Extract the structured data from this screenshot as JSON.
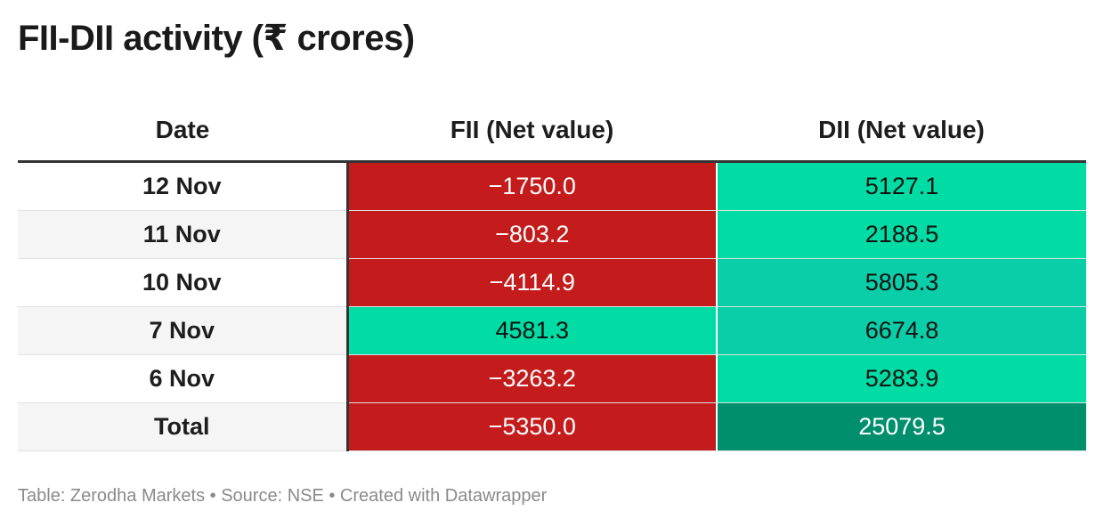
{
  "title": "FII-DII activity (₹ crores)",
  "table": {
    "headers": {
      "date": "Date",
      "fii": "FII (Net value)",
      "dii": "DII (Net value)"
    },
    "rows": [
      {
        "date": "12 Nov",
        "fii": "−1750.0",
        "dii": "5127.1"
      },
      {
        "date": "11 Nov",
        "fii": "−803.2",
        "dii": "2188.5"
      },
      {
        "date": "10 Nov",
        "fii": "−4114.9",
        "dii": "5805.3"
      },
      {
        "date": "7 Nov",
        "fii": "4581.3",
        "dii": "6674.8"
      },
      {
        "date": "6 Nov",
        "fii": "−3263.2",
        "dii": "5283.9"
      },
      {
        "date": "Total",
        "fii": "−5350.0",
        "dii": "25079.5"
      }
    ]
  },
  "colors": {
    "negative": "#c41c1c",
    "positive_light": "#00dca4",
    "positive_mid": "#0acea8",
    "positive_dark": "#008f6c"
  },
  "chart_data": {
    "type": "table",
    "title": "FII-DII activity (₹ crores)",
    "columns": [
      "Date",
      "FII (Net value)",
      "DII (Net value)"
    ],
    "categories": [
      "12 Nov",
      "11 Nov",
      "10 Nov",
      "7 Nov",
      "6 Nov",
      "Total"
    ],
    "series": [
      {
        "name": "FII (Net value)",
        "values": [
          -1750.0,
          -803.2,
          -4114.9,
          4581.3,
          -3263.2,
          -5350.0
        ]
      },
      {
        "name": "DII (Net value)",
        "values": [
          5127.1,
          2188.5,
          5805.3,
          6674.8,
          5283.9,
          25079.5
        ]
      }
    ]
  },
  "footer": "Table: Zerodha Markets • Source: NSE • Created with Datawrapper"
}
